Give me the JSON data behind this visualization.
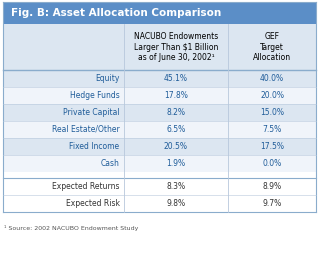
{
  "title": "Fig. B: Asset Allocation Comparison",
  "title_bg_top": "#5b8ec7",
  "title_bg_bot": "#4472c4",
  "title_color": "#ffffff",
  "header_bg": "#dce6f1",
  "col_headers": [
    "NACUBO Endowments\nLarger Than $1 Billion\nas of June 30, 2002¹",
    "GEF\nTarget\nAllocation"
  ],
  "rows": [
    [
      "Equity",
      "45.1%",
      "40.0%"
    ],
    [
      "Hedge Funds",
      "17.8%",
      "20.0%"
    ],
    [
      "Private Capital",
      "8.2%",
      "15.0%"
    ],
    [
      "Real Estate/Other",
      "6.5%",
      "7.5%"
    ],
    [
      "Fixed Income",
      "20.5%",
      "17.5%"
    ],
    [
      "Cash",
      "1.9%",
      "0.0%"
    ]
  ],
  "separator_rows": [
    [
      "Expected Returns",
      "8.3%",
      "8.9%"
    ],
    [
      "Expected Risk",
      "9.8%",
      "9.7%"
    ]
  ],
  "footnote": "¹ Source: 2002 NACUBO Endowment Study",
  "data_color": "#1f5c99",
  "label_color_sep": "#333333",
  "border_color": "#b8c8dc",
  "border_color_dark": "#8aaccc",
  "figsize": [
    3.19,
    2.68
  ],
  "dpi": 100
}
